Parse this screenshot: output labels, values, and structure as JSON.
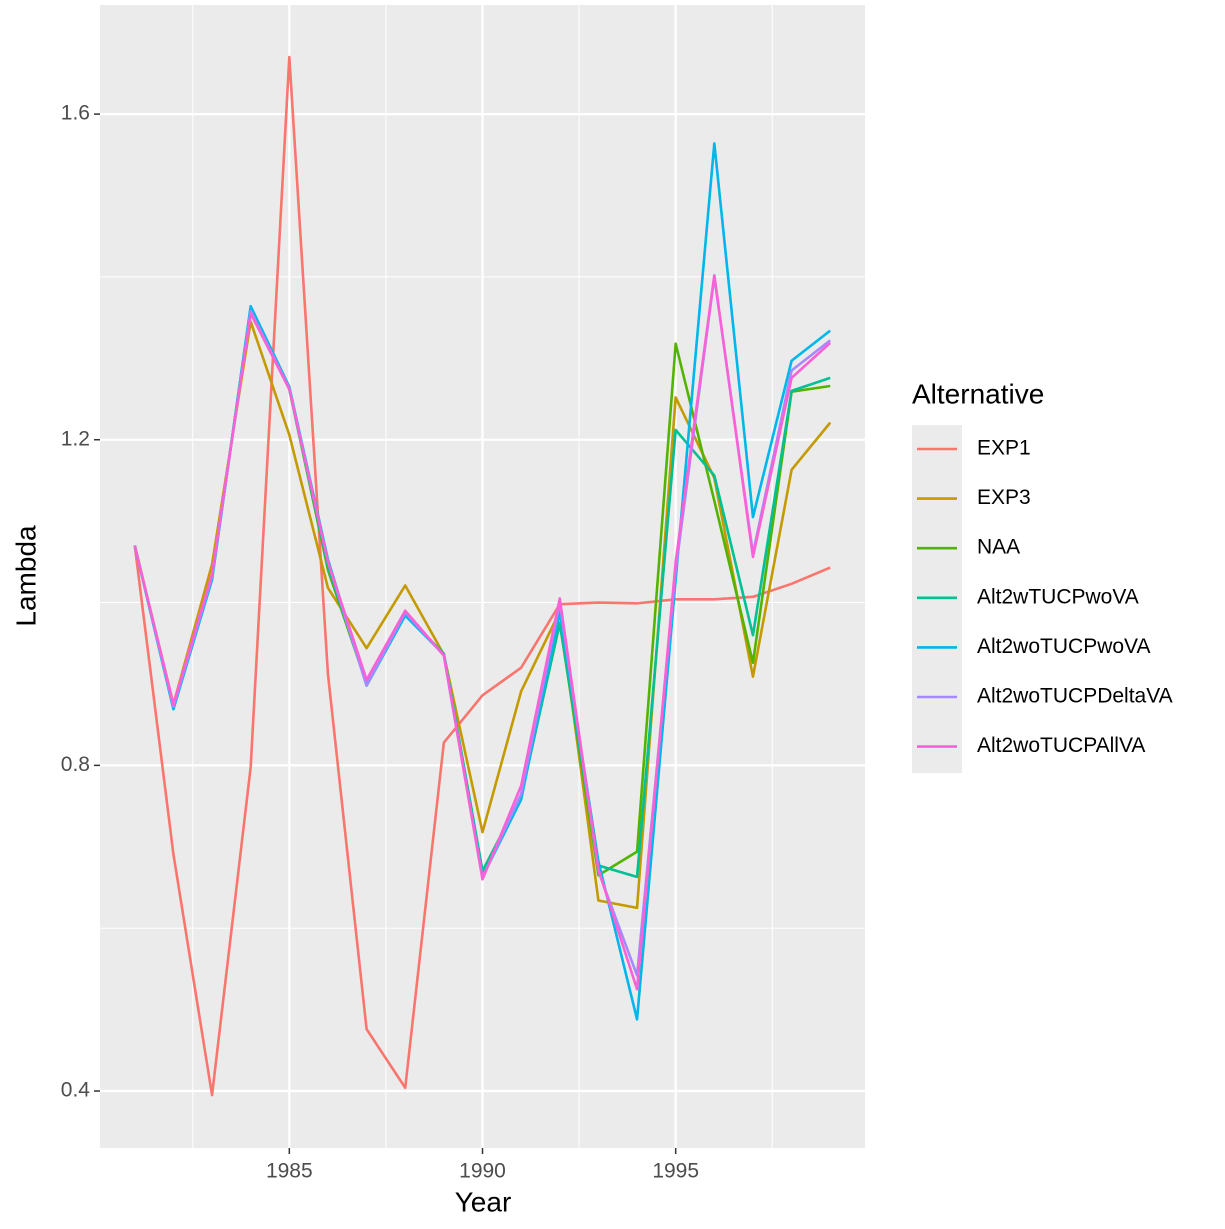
{
  "chart_data": {
    "type": "line",
    "x_label": "Year",
    "y_label": "Lambda",
    "legend_title": "Alternative",
    "legend_position": "right",
    "x": [
      1981,
      1982,
      1983,
      1984,
      1985,
      1986,
      1987,
      1988,
      1989,
      1990,
      1991,
      1992,
      1993,
      1994,
      1995,
      1996,
      1997,
      1998,
      1999
    ],
    "xlim": [
      1980.1,
      1999.9
    ],
    "xticks": [
      1985,
      1990,
      1995
    ],
    "xminor": [
      1982.5,
      1987.5,
      1992.5,
      1997.5
    ],
    "ylim": [
      0.33,
      1.734
    ],
    "yticks": [
      0.4,
      0.8,
      1.2,
      1.6
    ],
    "yminor": [
      0.6,
      1.0,
      1.4
    ],
    "grid": true,
    "series": [
      {
        "name": "EXP1",
        "color": "#F8766D",
        "values": [
          1.07,
          0.691,
          0.395,
          0.798,
          1.67,
          0.912,
          0.476,
          0.404,
          0.828,
          0.886,
          0.92,
          0.998,
          1.0,
          0.999,
          1.004,
          1.004,
          1.007,
          1.023,
          1.043
        ]
      },
      {
        "name": "EXP3",
        "color": "#C49A00",
        "values": [
          1.07,
          0.875,
          1.047,
          1.345,
          1.206,
          1.018,
          0.944,
          1.021,
          0.936,
          0.718,
          0.891,
          0.989,
          0.634,
          0.625,
          1.252,
          1.153,
          0.909,
          1.163,
          1.221
        ]
      },
      {
        "name": "NAA",
        "color": "#53B400",
        "values": [
          1.07,
          0.87,
          1.03,
          1.362,
          1.262,
          1.04,
          0.9,
          0.985,
          0.937,
          0.67,
          0.762,
          0.975,
          0.665,
          0.694,
          1.318,
          1.125,
          0.926,
          1.259,
          1.266
        ]
      },
      {
        "name": "Alt2wTUCPwoVA",
        "color": "#00C094",
        "values": [
          1.07,
          0.87,
          1.03,
          1.362,
          1.262,
          1.045,
          0.9,
          0.985,
          0.937,
          0.67,
          0.762,
          0.975,
          0.677,
          0.663,
          1.212,
          1.156,
          0.96,
          1.26,
          1.276
        ]
      },
      {
        "name": "Alt2woTUCPwoVA",
        "color": "#00B6EB",
        "values": [
          1.07,
          0.869,
          1.028,
          1.364,
          1.265,
          1.053,
          0.898,
          0.984,
          0.936,
          0.663,
          0.758,
          0.989,
          0.682,
          0.488,
          1.028,
          1.564,
          1.105,
          1.297,
          1.334
        ]
      },
      {
        "name": "Alt2woTUCPDeltaVA",
        "color": "#A58AFF",
        "values": [
          1.07,
          0.872,
          1.032,
          1.358,
          1.263,
          1.05,
          0.898,
          0.988,
          0.935,
          0.662,
          0.765,
          1.0,
          0.67,
          0.542,
          1.04,
          1.4,
          1.06,
          1.285,
          1.322
        ]
      },
      {
        "name": "Alt2woTUCPAllVA",
        "color": "#FB61D7",
        "values": [
          1.07,
          0.875,
          1.035,
          1.355,
          1.262,
          1.05,
          0.905,
          0.99,
          0.935,
          0.66,
          0.775,
          1.005,
          0.672,
          0.525,
          1.05,
          1.402,
          1.056,
          1.276,
          1.319
        ]
      }
    ]
  }
}
